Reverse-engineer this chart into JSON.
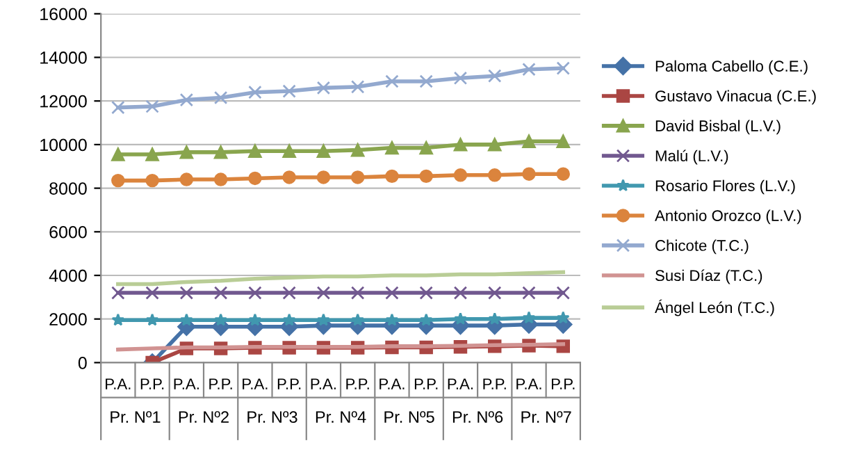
{
  "chart_data": {
    "type": "line",
    "categories": [
      "P.A.",
      "P.P.",
      "P.A.",
      "P.P.",
      "P.A.",
      "P.P.",
      "P.A.",
      "P.P.",
      "P.A.",
      "P.P.",
      "P.A.",
      "P.P.",
      "P.A.",
      "P.P."
    ],
    "annotations": [
      "Pr. Nº1",
      "Pr. Nº2",
      "Pr. Nº3",
      "Pr. Nº4",
      "Pr. Nº5",
      "Pr. Nº6",
      "Pr. Nº7"
    ],
    "series": [
      {
        "name": "Paloma Cabello (C.E.)",
        "color": "#4572a7",
        "marker": "diamond",
        "values": [
          null,
          0,
          1650,
          1650,
          1650,
          1650,
          1700,
          1700,
          1700,
          1700,
          1700,
          1700,
          1750,
          1750
        ]
      },
      {
        "name": "Gustavo Vinacua (C.E.)",
        "color": "#aa4643",
        "marker": "square",
        "values": [
          null,
          0,
          650,
          650,
          680,
          680,
          680,
          680,
          700,
          700,
          720,
          750,
          780,
          750
        ]
      },
      {
        "name": "David Bisbal (L.V.)",
        "color": "#89a54e",
        "marker": "triangle",
        "values": [
          9550,
          9550,
          9650,
          9650,
          9700,
          9700,
          9700,
          9750,
          9850,
          9850,
          10000,
          10000,
          10150,
          10150
        ]
      },
      {
        "name": "Malú (L.V.)",
        "color": "#71588f",
        "marker": "cross",
        "values": [
          3200,
          3200,
          3200,
          3200,
          3200,
          3200,
          3200,
          3200,
          3200,
          3200,
          3200,
          3200,
          3200,
          3200
        ]
      },
      {
        "name": "Rosario Flores (L.V.)",
        "color": "#4198af",
        "marker": "star",
        "values": [
          1950,
          1950,
          1950,
          1950,
          1950,
          1950,
          1950,
          1950,
          1950,
          1950,
          2000,
          2000,
          2050,
          2050
        ]
      },
      {
        "name": "Antonio Orozco (L.V.)",
        "color": "#db843d",
        "marker": "circle",
        "values": [
          8350,
          8350,
          8400,
          8400,
          8450,
          8500,
          8500,
          8500,
          8550,
          8550,
          8600,
          8600,
          8650,
          8650
        ]
      },
      {
        "name": "Chicote (T.C.)",
        "color": "#93a9cf",
        "marker": "cross",
        "values": [
          11700,
          11750,
          12050,
          12150,
          12400,
          12450,
          12600,
          12650,
          12900,
          12900,
          13050,
          13150,
          13450,
          13500
        ]
      },
      {
        "name": "Susi Díaz (T.C.)",
        "color": "#d19392",
        "marker": "none",
        "values": [
          600,
          650,
          700,
          700,
          720,
          720,
          720,
          720,
          750,
          750,
          770,
          800,
          820,
          850
        ]
      },
      {
        "name": "Ángel León (T.C.)",
        "color": "#b9cd96",
        "marker": "none",
        "values": [
          3600,
          3600,
          3700,
          3750,
          3850,
          3900,
          3950,
          3950,
          4000,
          4000,
          4050,
          4050,
          4100,
          4150
        ]
      }
    ],
    "ylim": [
      0,
      16000
    ],
    "yticks": [
      0,
      2000,
      4000,
      6000,
      8000,
      10000,
      12000,
      14000,
      16000
    ],
    "grid": "y",
    "legend": "right"
  }
}
